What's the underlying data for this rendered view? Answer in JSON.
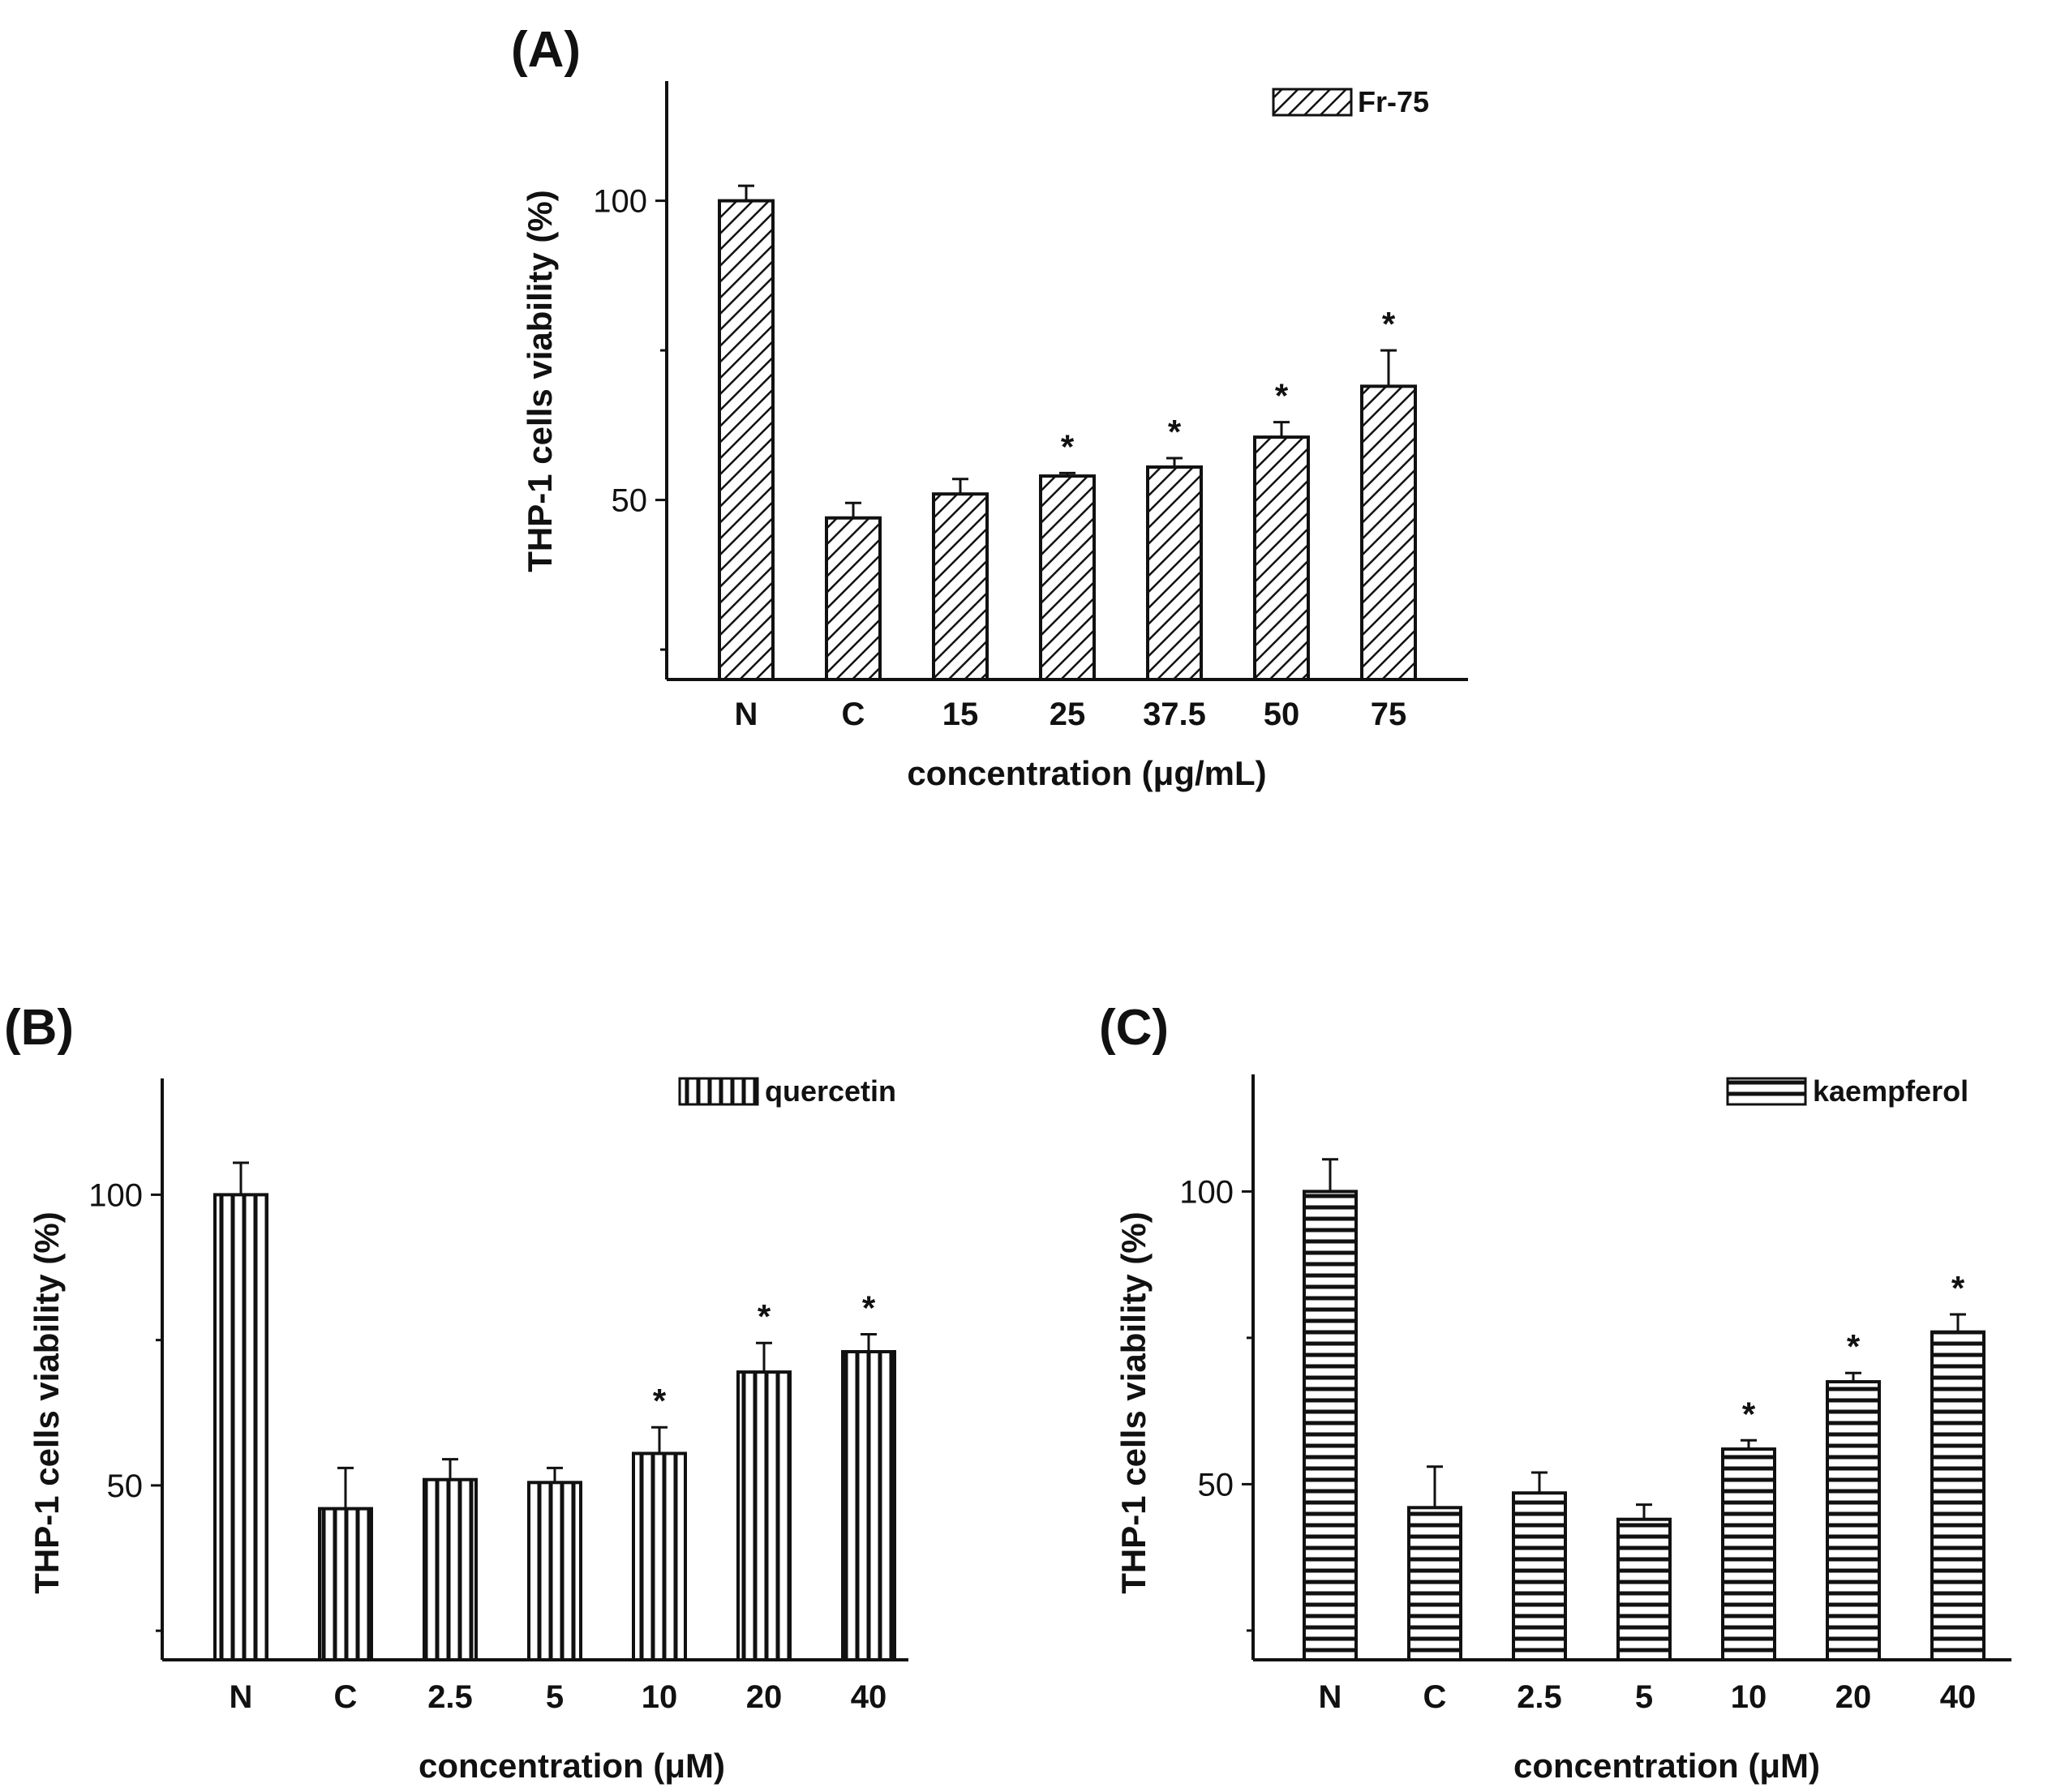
{
  "chart_data": [
    {
      "panel_label": "(A)",
      "type": "bar",
      "series_name": "Fr-75",
      "pattern": "diagonal",
      "categories": [
        "N",
        "C",
        "15",
        "25",
        "37.5",
        "50",
        "75"
      ],
      "values": [
        100,
        47,
        51,
        54,
        55.5,
        60.5,
        69
      ],
      "errors": [
        2.5,
        2.5,
        2.5,
        0.5,
        1.5,
        2.5,
        6
      ],
      "significant": [
        false,
        false,
        false,
        true,
        true,
        true,
        true
      ],
      "significance_marker": "*",
      "xlabel": "concentration (μg/mL)",
      "ylabel": "THP-1 cells viability (%)",
      "yticks": [
        "50",
        "100"
      ],
      "ylim": [
        20,
        120
      ]
    },
    {
      "panel_label": "(B)",
      "type": "bar",
      "series_name": "quercetin",
      "pattern": "vertical",
      "categories": [
        "N",
        "C",
        "2.5",
        "5",
        "10",
        "20",
        "40"
      ],
      "values": [
        100,
        46,
        51,
        50.5,
        55.5,
        69.5,
        73
      ],
      "errors": [
        5.5,
        7,
        3.5,
        2.5,
        4.5,
        5,
        3
      ],
      "significant": [
        false,
        false,
        false,
        false,
        true,
        true,
        true
      ],
      "significance_marker": "*",
      "xlabel": "concentration (μM)",
      "ylabel": "THP-1 cells viability (%)",
      "yticks": [
        "50",
        "100"
      ],
      "ylim": [
        20,
        120
      ]
    },
    {
      "panel_label": "(C)",
      "type": "bar",
      "series_name": "kaempferol",
      "pattern": "horizontal",
      "categories": [
        "N",
        "C",
        "2.5",
        "5",
        "10",
        "20",
        "40"
      ],
      "values": [
        100,
        46,
        48.5,
        44,
        56,
        67.5,
        76
      ],
      "errors": [
        5.5,
        7,
        3.5,
        2.5,
        1.5,
        1.5,
        3
      ],
      "significant": [
        false,
        false,
        false,
        false,
        true,
        true,
        true
      ],
      "significance_marker": "*",
      "xlabel": "concentration (μM)",
      "ylabel": "THP-1 cells viability (%)",
      "yticks": [
        "50",
        "100"
      ],
      "ylim": [
        20,
        120
      ]
    }
  ]
}
